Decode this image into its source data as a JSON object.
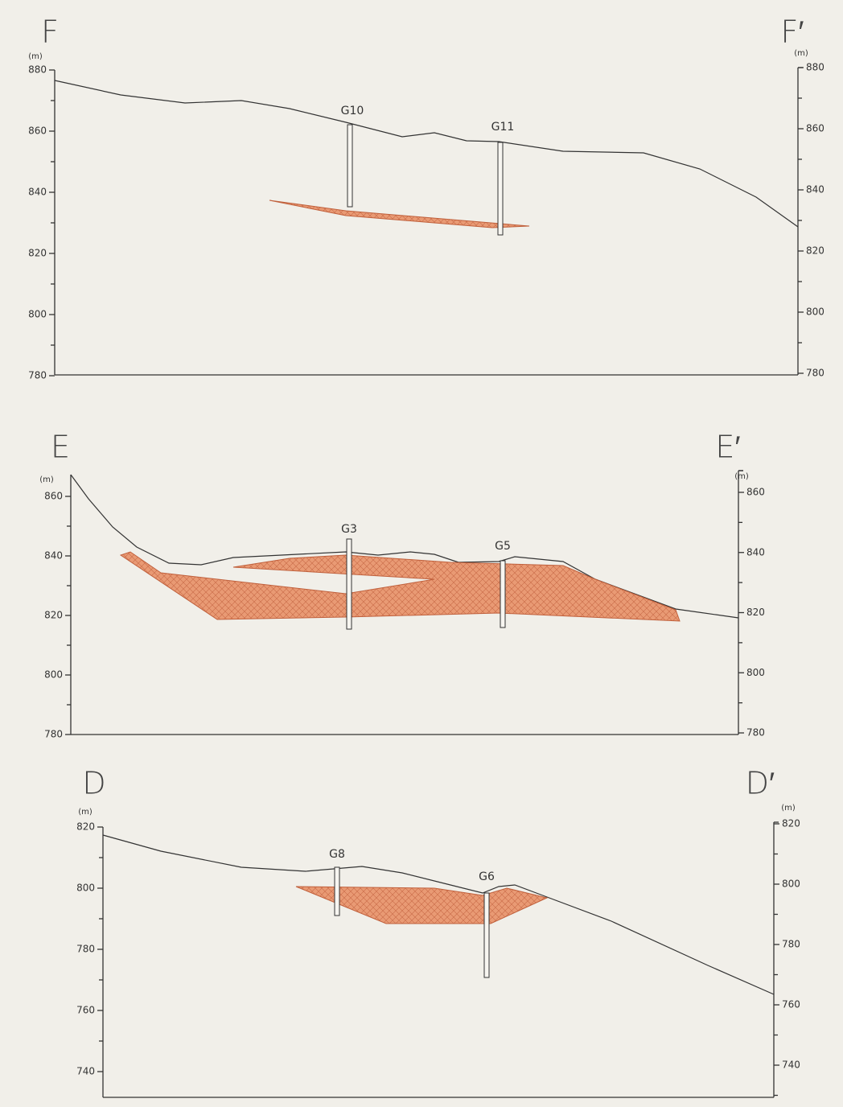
{
  "sections": [
    {
      "label_left": "F",
      "label_right": "F′",
      "unit_left": "(m)",
      "unit_right": "(m)",
      "left_ticks": [
        880,
        860,
        840,
        820,
        800,
        780
      ],
      "right_ticks": [
        880,
        860,
        840,
        820,
        800,
        780
      ],
      "boreholes": [
        "G10",
        "G11"
      ]
    },
    {
      "label_left": "E",
      "label_right": "E′",
      "unit_left": "(m)",
      "unit_right": "(m)",
      "left_ticks": [
        860,
        840,
        820,
        800,
        780
      ],
      "right_ticks": [
        860,
        840,
        820,
        800,
        780
      ],
      "boreholes": [
        "G3",
        "G5"
      ]
    },
    {
      "label_left": "D",
      "label_right": "D′",
      "unit_left": "(m)",
      "unit_right": "(m)",
      "left_ticks": [
        820,
        800,
        780,
        760,
        740
      ],
      "right_ticks": [
        820,
        800,
        780,
        760,
        740
      ],
      "boreholes": [
        "G8",
        "G6"
      ]
    }
  ]
}
